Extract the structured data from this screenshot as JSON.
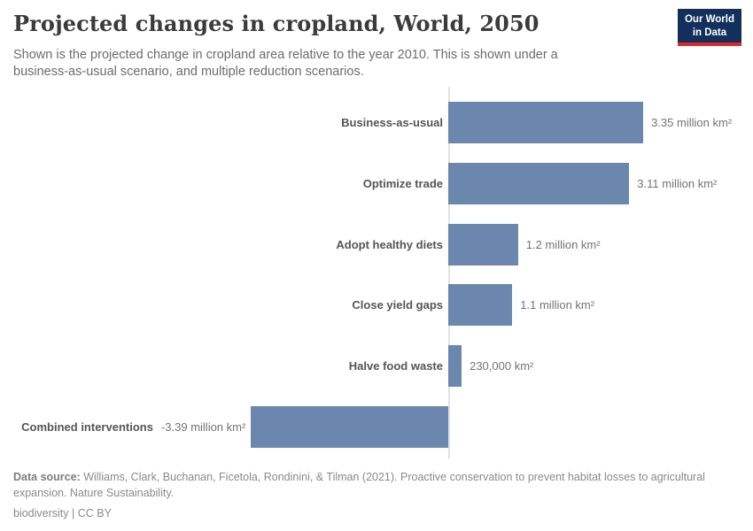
{
  "header": {
    "title": "Projected changes in cropland, World, 2050",
    "subtitle": "Shown is the projected change in cropland area relative to the year 2010. This is shown under a business-as-usual scenario, and multiple reduction scenarios.",
    "logo": {
      "line1": "Our World",
      "line2": "in Data",
      "bg_color": "#12305b",
      "accent_color": "#e0262c"
    }
  },
  "chart_data": {
    "type": "bar",
    "orientation": "horizontal",
    "title": "Projected changes in cropland, World, 2050",
    "unit": "million km²",
    "categories": [
      "Business-as-usual",
      "Optimize trade",
      "Adopt healthy diets",
      "Close yield gaps",
      "Halve food waste",
      "Combined interventions"
    ],
    "values": [
      3.35,
      3.11,
      1.2,
      1.1,
      0.23,
      -3.39
    ],
    "value_labels": [
      "3.35 million km²",
      "3.11 million km²",
      "1.2 million km²",
      "1.1 million km²",
      "230,000 km²",
      "-3.39 million km²"
    ],
    "xlim": [
      -3.39,
      3.35
    ],
    "grid": false,
    "legend": false,
    "bar_color": "#6c87ae",
    "axis_color": "#e2e2e2"
  },
  "footer": {
    "datasource_label": "Data source:",
    "datasource_text": " Williams, Clark, Buchanan, Ficetola, Rondinini, & Tilman (2021). Proactive conservation to prevent habitat losses to agricultural expansion. Nature Sustainability.",
    "license": "biodiversity | CC BY"
  }
}
